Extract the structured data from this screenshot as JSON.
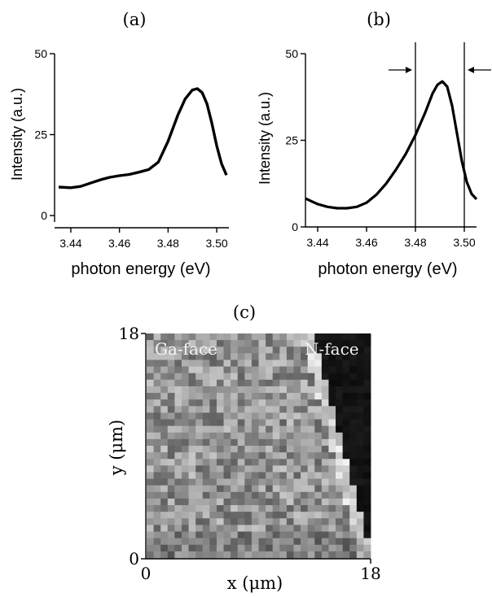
{
  "chart_data": [
    {
      "type": "line",
      "panel_label": "(a)",
      "xlabel": "photon energy (eV)",
      "ylabel": "Intensity (a.u.)",
      "xlim": [
        3.435,
        3.505
      ],
      "ylim": [
        0,
        50
      ],
      "xticks": [
        3.44,
        3.46,
        3.48,
        3.5
      ],
      "xtick_labels": [
        "3.44",
        "3.46",
        "3.48",
        "3.50"
      ],
      "yticks": [
        0,
        25,
        50
      ],
      "ytick_labels": [
        "0",
        "25",
        "50"
      ],
      "series": [
        {
          "x": [
            3.435,
            3.44,
            3.444,
            3.448,
            3.452,
            3.456,
            3.46,
            3.464,
            3.468,
            3.472,
            3.476,
            3.48,
            3.484,
            3.487,
            3.49,
            3.492,
            3.494,
            3.496,
            3.498,
            3.5,
            3.502,
            3.504
          ],
          "y": [
            8.8,
            8.6,
            9.0,
            10.0,
            11.0,
            11.8,
            12.3,
            12.7,
            13.4,
            14.2,
            16.5,
            23.0,
            31.0,
            36.0,
            38.8,
            39.2,
            38.0,
            34.5,
            28.5,
            21.5,
            16.0,
            12.5
          ]
        }
      ]
    },
    {
      "type": "line",
      "panel_label": "(b)",
      "xlabel": "photon energy (eV)",
      "ylabel": "Intensity (a.u.)",
      "xlim": [
        3.435,
        3.505
      ],
      "ylim": [
        0,
        50
      ],
      "xticks": [
        3.44,
        3.46,
        3.48,
        3.5
      ],
      "xtick_labels": [
        "3.44",
        "3.46",
        "3.48",
        "3.50"
      ],
      "yticks": [
        0,
        25,
        50
      ],
      "ytick_labels": [
        "0",
        "25",
        "50"
      ],
      "vlines": [
        3.48,
        3.5
      ],
      "arrow_directions": [
        "right",
        "left"
      ],
      "series": [
        {
          "x": [
            3.435,
            3.44,
            3.444,
            3.448,
            3.452,
            3.456,
            3.46,
            3.464,
            3.468,
            3.472,
            3.476,
            3.48,
            3.484,
            3.487,
            3.489,
            3.491,
            3.493,
            3.495,
            3.497,
            3.499,
            3.501,
            3.503,
            3.505
          ],
          "y": [
            8.2,
            6.6,
            5.8,
            5.4,
            5.4,
            5.8,
            7.0,
            9.3,
            12.5,
            16.5,
            21.0,
            26.5,
            33.0,
            38.5,
            41.0,
            42.0,
            40.5,
            35.0,
            27.0,
            19.0,
            13.0,
            9.5,
            8.0
          ]
        }
      ]
    },
    {
      "type": "heatmap",
      "panel_label": "(c)",
      "xlabel": "x (μm)",
      "ylabel": "y (μm)",
      "xlim": [
        0,
        18
      ],
      "ylim": [
        0,
        18
      ],
      "xtick_labels": [
        "0",
        "18"
      ],
      "ytick_labels": [
        "0",
        "18"
      ],
      "annotations": [
        "Ga-face",
        "N-face"
      ],
      "grid_size": [
        32,
        34
      ],
      "colormap": "grayscale",
      "boundary": {
        "top_x": 13.3,
        "bottom_x": 18
      }
    }
  ]
}
